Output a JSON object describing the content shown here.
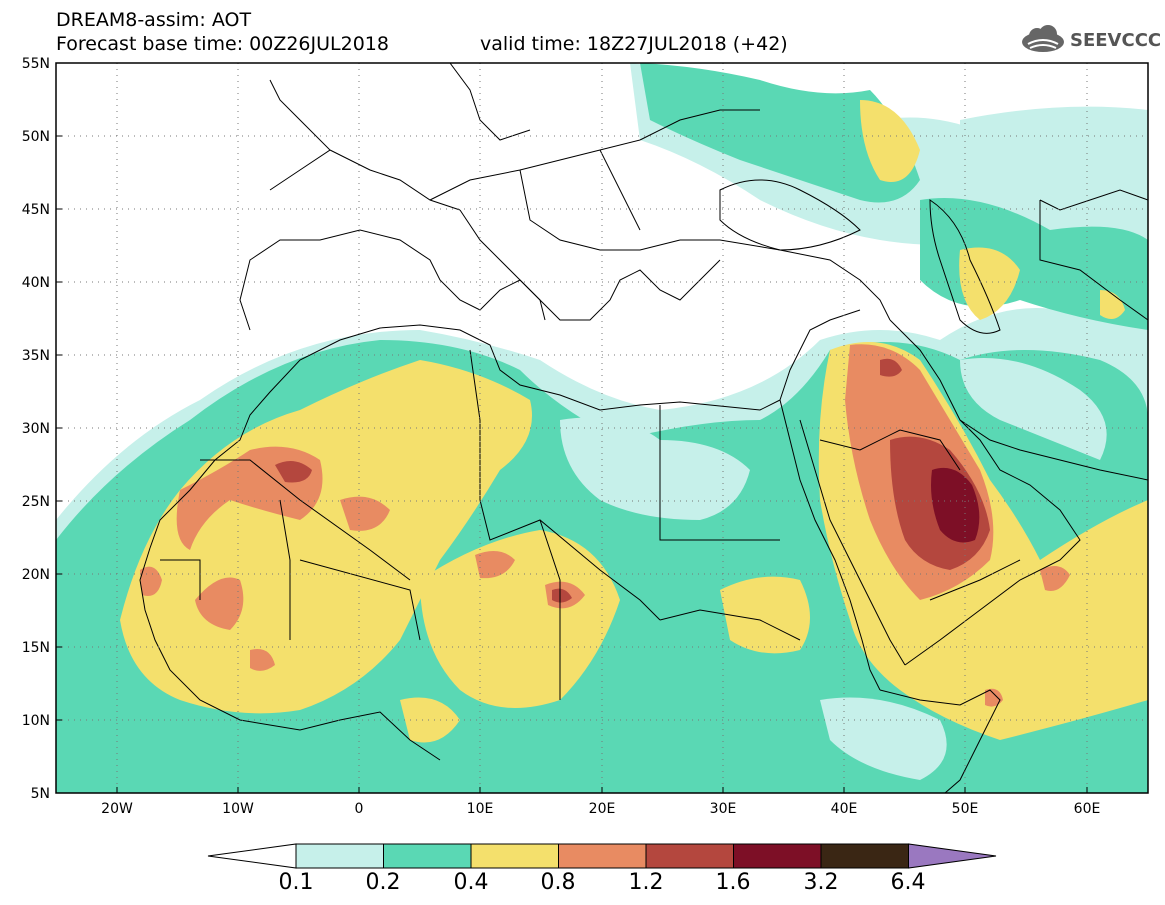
{
  "title": {
    "model": "DREAM8-assim: AOT",
    "base_time": "Forecast base time: 00Z26JUL2018",
    "valid_time": "valid time: 18Z27JUL2018 (+42)"
  },
  "logo": {
    "text": "SEEVCCC",
    "icon": "cloud-logo-icon"
  },
  "map": {
    "region": "North Africa, Europe, Middle East",
    "lat_labels": [
      "55N",
      "50N",
      "45N",
      "40N",
      "35N",
      "30N",
      "25N",
      "20N",
      "15N",
      "10N",
      "5N"
    ],
    "lon_labels": [
      "20W",
      "10W",
      "0",
      "10E",
      "20E",
      "30E",
      "40E",
      "50E",
      "60E"
    ],
    "lat_range": [
      5,
      55
    ],
    "lon_range": [
      -25,
      65
    ],
    "grid": "dotted"
  },
  "colorbar": {
    "labels": [
      "0.1",
      "0.2",
      "0.4",
      "0.8",
      "1.2",
      "1.6",
      "3.2",
      "6.4"
    ],
    "colors": [
      "#c6f0ea",
      "#5ad8b4",
      "#f4e06c",
      "#e88b62",
      "#b4473e",
      "#7d0f26",
      "#3a2614",
      "#9a78c0"
    ],
    "under_color": "#ffffff"
  }
}
